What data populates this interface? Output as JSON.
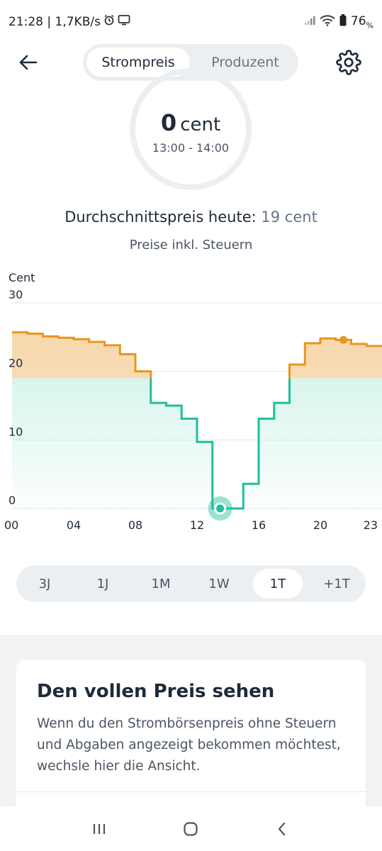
{
  "status": {
    "time_speed": "21:28 | 1,7KB/s",
    "battery": "76",
    "battery_unit": "%"
  },
  "topbar": {
    "tabs": [
      {
        "label": "Strompreis",
        "active": true
      },
      {
        "label": "Produzent",
        "active": false
      }
    ],
    "back_icon": "arrow-left-icon",
    "settings_icon": "gear-icon"
  },
  "gauge": {
    "value": "0",
    "unit": "cent",
    "time_range": "13:00 - 14:00"
  },
  "average": {
    "label": "Durchschnittspreis heute:",
    "value": "19 cent"
  },
  "tax_note": "Preise inkl. Steuern",
  "chart_data": {
    "type": "line",
    "step": true,
    "ylabel": "Cent",
    "ylim": [
      0,
      30
    ],
    "y_ticks": [
      "0",
      "10",
      "20",
      "30"
    ],
    "x_ticks": [
      "00",
      "04",
      "08",
      "12",
      "16",
      "20",
      "23"
    ],
    "x_tick_hours": [
      0,
      4,
      8,
      12,
      16,
      20,
      23
    ],
    "grid": true,
    "threshold": 19,
    "colors": {
      "above": "#e8961e",
      "below": "#1fbf9b",
      "fill_above": "#f7d8ae",
      "fill_below": "#c5f0e3"
    },
    "series": [
      {
        "x": [
          0,
          1,
          2,
          3,
          4,
          5,
          6,
          7,
          8,
          9,
          10,
          11,
          12,
          13,
          14,
          15,
          16,
          17,
          18,
          19,
          20,
          21,
          22,
          23
        ],
        "values": [
          25.7,
          25.5,
          25.1,
          24.9,
          24.7,
          24.3,
          23.8,
          22.5,
          20.0,
          15.4,
          15.0,
          13.1,
          9.7,
          0,
          0,
          3.6,
          13.1,
          15.4,
          21.0,
          24.1,
          24.8,
          24.6,
          24.0,
          23.7
        ]
      }
    ],
    "highlight_hour": 13,
    "max_hour": 21
  },
  "range_selector": {
    "options": [
      {
        "label": "3J",
        "active": false
      },
      {
        "label": "1J",
        "active": false
      },
      {
        "label": "1M",
        "active": false
      },
      {
        "label": "1W",
        "active": false
      },
      {
        "label": "1T",
        "active": true
      },
      {
        "label": "+1T",
        "active": false
      }
    ]
  },
  "info_card": {
    "title": "Den vollen Preis sehen",
    "body": "Wenn du den Strombörsenpreis ohne Steuern und Abgaben angezeigt bekommen möchtest, wechsle hier die Ansicht."
  },
  "navbar": {
    "recent_icon": "recent-apps-icon",
    "home_icon": "home-icon",
    "back_icon": "nav-back-icon"
  }
}
